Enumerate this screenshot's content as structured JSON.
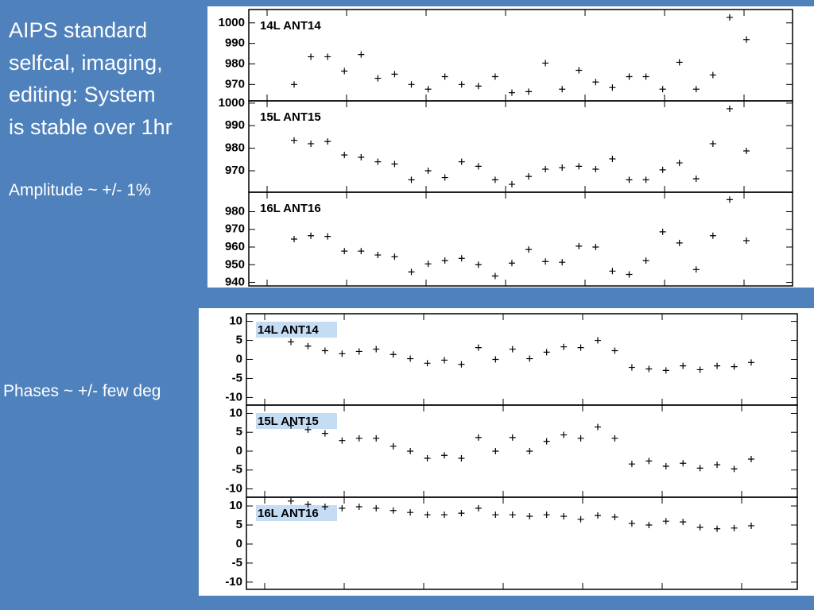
{
  "slide": {
    "title_lines": [
      "AIPS standard",
      "selfcal, imaging,",
      "editing:  System",
      "is stable over 1hr"
    ],
    "amplitude_note": "Amplitude ~  +/- 1%",
    "phase_note": "Phases ~  +/- few deg"
  },
  "chart_data": [
    {
      "type": "scatter",
      "title": "14L ANT14",
      "color": "#000000",
      "categories": [
        null,
        null,
        null,
        null,
        null,
        null,
        null,
        null,
        null,
        null,
        null,
        null,
        null,
        null,
        null,
        null,
        null,
        null,
        null,
        null,
        null,
        null,
        null,
        null,
        null,
        null,
        null,
        null
      ],
      "values": [
        970,
        983.5,
        983.5,
        976.5,
        984.6,
        973,
        975,
        970,
        967.7,
        973.8,
        970,
        969.2,
        973.8,
        966,
        966.5,
        980.4,
        967.7,
        976.9,
        971.2,
        968.5,
        973.8,
        973.8,
        967.7,
        980.8,
        967.7,
        974.6,
        1002.7,
        991.9
      ],
      "ylim": [
        962,
        1006.5
      ],
      "yticks": [
        970,
        980,
        990,
        1000
      ]
    },
    {
      "type": "scatter",
      "title": "15L ANT15",
      "color": "#000000",
      "categories": [
        null,
        null,
        null,
        null,
        null,
        null,
        null,
        null,
        null,
        null,
        null,
        null,
        null,
        null,
        null,
        null,
        null,
        null,
        null,
        null,
        null,
        null,
        null,
        null,
        null,
        null,
        null,
        null
      ],
      "values": [
        983.5,
        982,
        983,
        977,
        976,
        974,
        973,
        966,
        970,
        967,
        974,
        972,
        966,
        964,
        967.5,
        970.7,
        971.4,
        972,
        970.7,
        975.3,
        966,
        966,
        970.4,
        973.5,
        966.5,
        982,
        997.5,
        978.8
      ],
      "ylim": [
        960.5,
        1001
      ],
      "yticks": [
        970,
        980,
        990,
        1000
      ]
    },
    {
      "type": "scatter",
      "title": "16L ANT16",
      "color": "#000000",
      "categories": [
        null,
        null,
        null,
        null,
        null,
        null,
        null,
        null,
        null,
        null,
        null,
        null,
        null,
        null,
        null,
        null,
        null,
        null,
        null,
        null,
        null,
        null,
        null,
        null,
        null,
        null,
        null,
        null
      ],
      "values": [
        964.5,
        966.4,
        966,
        957.7,
        957.7,
        955.5,
        954.5,
        945.9,
        950.5,
        952.3,
        953.6,
        950,
        943.6,
        950.9,
        958.6,
        951.8,
        951.4,
        960.5,
        960,
        946.4,
        944.5,
        952.3,
        968.6,
        962.3,
        947.3,
        966.4,
        986.8,
        963.6
      ],
      "ylim": [
        938,
        991
      ],
      "yticks": [
        940,
        950,
        960,
        970,
        980
      ]
    },
    {
      "type": "scatter",
      "title": "14L ANT14",
      "color": "#000000",
      "categories": [
        null,
        null,
        null,
        null,
        null,
        null,
        null,
        null,
        null,
        null,
        null,
        null,
        null,
        null,
        null,
        null,
        null,
        null,
        null,
        null,
        null,
        null,
        null,
        null,
        null,
        null,
        null,
        null
      ],
      "values": [
        4.6,
        3.5,
        2.3,
        1.5,
        2.1,
        2.7,
        1.3,
        0.2,
        -1,
        -0.2,
        -1.3,
        3.1,
        0,
        2.7,
        0.2,
        1.9,
        3.3,
        3.1,
        5,
        2.3,
        -2.1,
        -2.5,
        -2.9,
        -1.7,
        -2.7,
        -1.7,
        -1.9,
        -0.8
      ],
      "ylim": [
        -12,
        12
      ],
      "yticks": [
        -10,
        -5,
        0,
        5,
        10
      ]
    },
    {
      "type": "scatter",
      "title": "15L ANT15",
      "color": "#000000",
      "categories": [
        null,
        null,
        null,
        null,
        null,
        null,
        null,
        null,
        null,
        null,
        null,
        null,
        null,
        null,
        null,
        null,
        null,
        null,
        null,
        null,
        null,
        null,
        null,
        null,
        null,
        null,
        null,
        null
      ],
      "values": [
        6.8,
        5.7,
        4.7,
        2.8,
        3.4,
        3.4,
        1.3,
        0,
        -1.9,
        -1.1,
        -1.9,
        3.6,
        0,
        3.6,
        0,
        2.6,
        4.3,
        3.4,
        6.4,
        3.4,
        -3.4,
        -2.6,
        -4,
        -3.2,
        -4.5,
        -3.6,
        -4.7,
        -2.1
      ],
      "ylim": [
        -12.2,
        12.2
      ],
      "yticks": [
        -10,
        -5,
        0,
        5,
        10
      ]
    },
    {
      "type": "scatter",
      "title": "16L ANT16",
      "color": "#000000",
      "categories": [
        null,
        null,
        null,
        null,
        null,
        null,
        null,
        null,
        null,
        null,
        null,
        null,
        null,
        null,
        null,
        null,
        null,
        null,
        null,
        null,
        null,
        null,
        null,
        null,
        null,
        null,
        null,
        null
      ],
      "values": [
        11.3,
        10.4,
        9.8,
        9.4,
        9.8,
        9.4,
        8.8,
        8.3,
        7.7,
        7.7,
        8.1,
        9.4,
        7.7,
        7.7,
        7.3,
        7.7,
        7.3,
        6.5,
        7.5,
        7.1,
        5.4,
        5,
        6,
        5.8,
        4.4,
        4,
        4.2,
        4.8
      ],
      "ylim": [
        -11.9,
        12.3
      ],
      "yticks": [
        -10,
        -5,
        0,
        5,
        10
      ]
    }
  ]
}
